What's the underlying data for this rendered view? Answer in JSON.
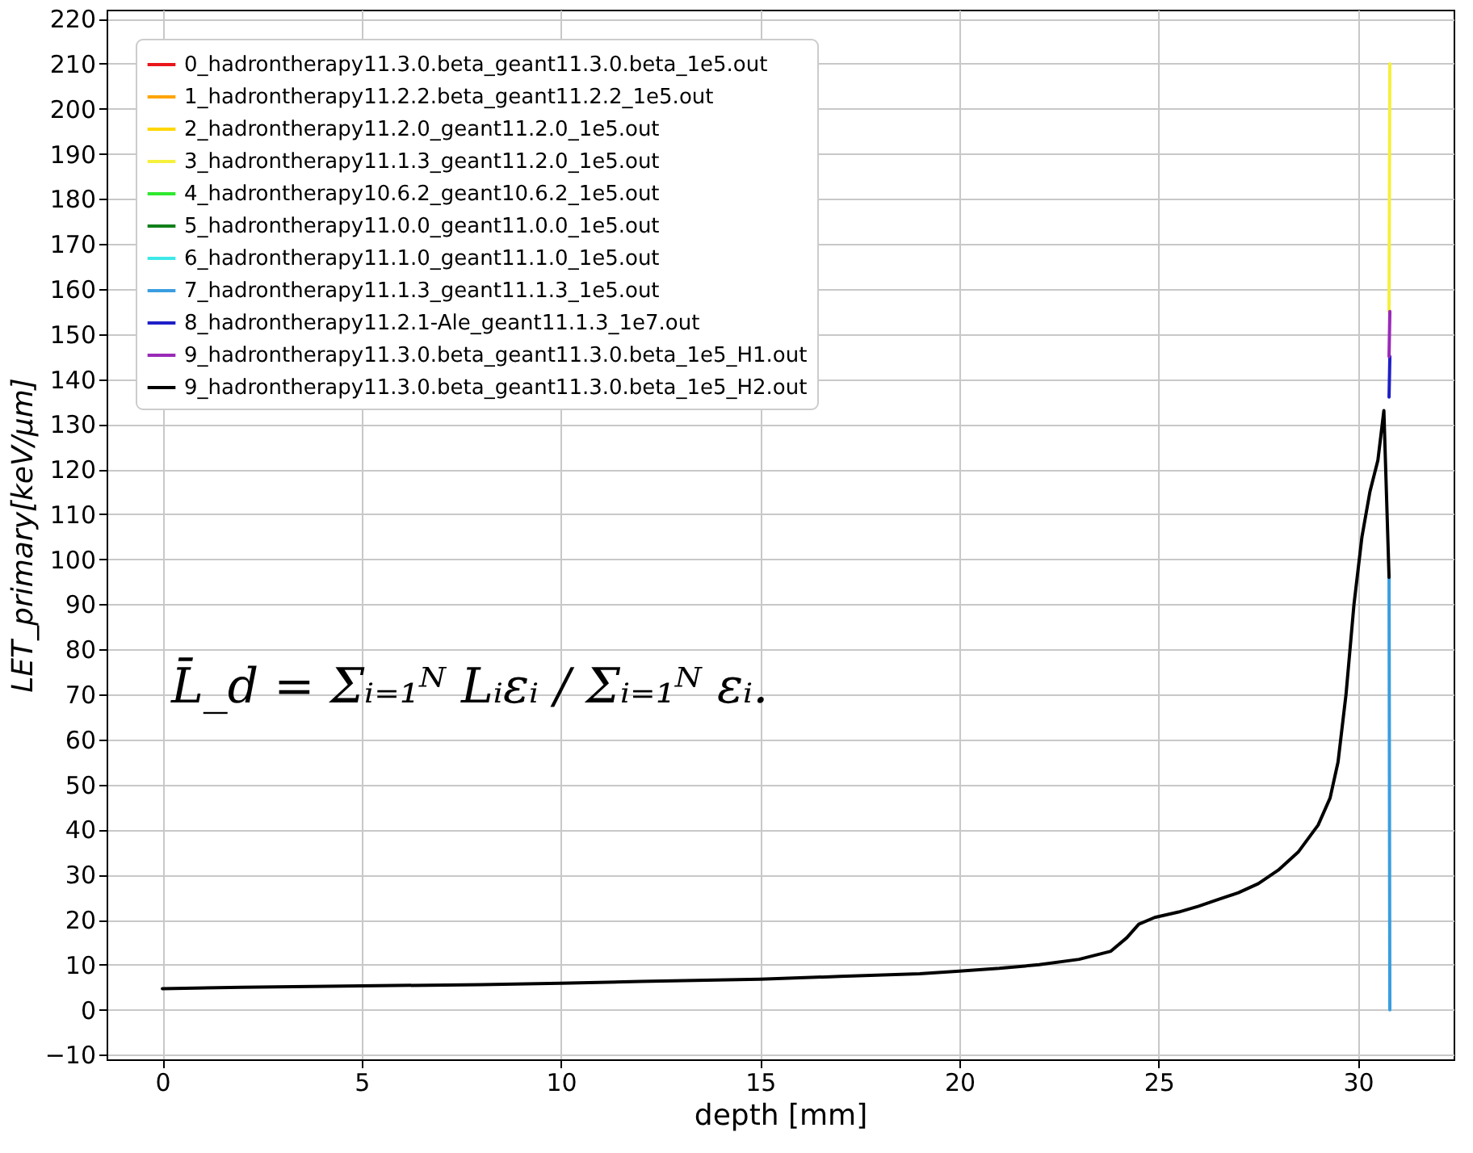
{
  "chart_data": {
    "type": "line",
    "xlabel": "depth [mm]",
    "ylabel": "LET_primary[keV/μm]",
    "x": [
      0,
      2,
      5,
      8,
      10,
      12,
      15,
      17,
      19,
      20,
      21,
      22,
      23,
      23.8,
      24.2,
      24.5,
      24.9,
      25.5,
      26,
      26.5,
      27,
      27.5,
      28,
      28.5,
      29,
      29.3,
      29.5,
      29.7,
      29.9,
      30.1,
      30.3,
      30.5,
      30.65,
      30.78,
      30.8
    ],
    "xlim": [
      -1.4,
      32.4
    ],
    "xticks": [
      0,
      5,
      10,
      15,
      20,
      25,
      30
    ],
    "ylim": [
      -11,
      222
    ],
    "yticks": [
      -10,
      0,
      10,
      20,
      30,
      40,
      50,
      60,
      70,
      80,
      90,
      100,
      110,
      120,
      130,
      140,
      150,
      160,
      170,
      180,
      190,
      200,
      210,
      220
    ],
    "grid": true,
    "legend": "top left",
    "line_style": "solid",
    "marker": "none",
    "series": [
      {
        "name": "0_hadrontherapy11.3.0.beta_geant11.3.0.beta_1e5.out",
        "color": "#e8161b",
        "values": [
          null,
          null,
          null,
          null,
          null,
          null,
          null,
          null,
          null,
          null,
          null,
          null,
          null,
          null,
          null,
          null,
          null,
          null,
          null,
          null,
          null,
          null,
          null,
          null,
          null,
          null,
          null,
          null,
          null,
          null,
          null,
          null,
          null,
          null,
          null
        ]
      },
      {
        "name": "1_hadrontherapy11.2.2.beta_geant11.2.2_1e5.out",
        "color": "#ffa500",
        "values": [
          null,
          null,
          null,
          null,
          null,
          null,
          null,
          null,
          null,
          null,
          null,
          null,
          null,
          null,
          null,
          null,
          null,
          null,
          null,
          null,
          null,
          null,
          null,
          null,
          null,
          null,
          null,
          null,
          null,
          null,
          null,
          null,
          null,
          null,
          null
        ]
      },
      {
        "name": "2_hadrontherapy11.2.0_geant11.2.0_1e5.out",
        "color": "#ffd700",
        "values": [
          null,
          null,
          null,
          null,
          null,
          null,
          null,
          null,
          null,
          null,
          null,
          null,
          null,
          null,
          null,
          null,
          null,
          null,
          null,
          null,
          null,
          null,
          null,
          null,
          null,
          null,
          null,
          null,
          null,
          null,
          null,
          null,
          null,
          null,
          null
        ]
      },
      {
        "name": "3_hadrontherapy11.1.3_geant11.2.0_1e5.out",
        "color": "#f5f03c",
        "values": [
          null,
          null,
          null,
          null,
          null,
          null,
          null,
          null,
          null,
          null,
          null,
          null,
          null,
          null,
          null,
          null,
          null,
          null,
          null,
          null,
          null,
          null,
          null,
          null,
          null,
          null,
          null,
          null,
          null,
          null,
          null,
          null,
          null,
          155,
          210
        ]
      },
      {
        "name": "4_hadrontherapy10.6.2_geant10.6.2_1e5.out",
        "color": "#2ee82e",
        "values": [
          null,
          null,
          null,
          null,
          null,
          null,
          null,
          null,
          null,
          null,
          null,
          null,
          null,
          null,
          null,
          null,
          null,
          null,
          null,
          null,
          null,
          null,
          null,
          null,
          null,
          null,
          null,
          null,
          null,
          null,
          null,
          null,
          null,
          null,
          null
        ]
      },
      {
        "name": "5_hadrontherapy11.0.0_geant11.0.0_1e5.out",
        "color": "#11801a",
        "values": [
          null,
          null,
          null,
          null,
          null,
          null,
          null,
          null,
          null,
          null,
          null,
          null,
          null,
          null,
          null,
          null,
          null,
          null,
          null,
          null,
          null,
          null,
          null,
          null,
          null,
          null,
          null,
          null,
          null,
          null,
          null,
          null,
          null,
          null,
          null
        ]
      },
      {
        "name": "6_hadrontherapy11.1.0_geant11.1.0_1e5.out",
        "color": "#3ee8e8",
        "values": [
          null,
          null,
          null,
          null,
          null,
          null,
          null,
          null,
          null,
          null,
          null,
          null,
          null,
          null,
          null,
          null,
          null,
          null,
          null,
          null,
          null,
          null,
          null,
          null,
          null,
          null,
          null,
          null,
          null,
          null,
          null,
          null,
          null,
          null,
          null
        ]
      },
      {
        "name": "7_hadrontherapy11.1.3_geant11.1.3_1e5.out",
        "color": "#3a9ee0",
        "values": [
          null,
          null,
          null,
          null,
          null,
          null,
          null,
          null,
          null,
          null,
          null,
          null,
          null,
          null,
          null,
          null,
          null,
          null,
          null,
          null,
          null,
          null,
          null,
          null,
          null,
          null,
          null,
          null,
          null,
          null,
          null,
          null,
          null,
          96,
          0
        ]
      },
      {
        "name": "8_hadrontherapy11.2.1-Ale_geant11.1.3_1e7.out",
        "color": "#1f1fc8",
        "values": [
          null,
          null,
          null,
          null,
          null,
          null,
          null,
          null,
          null,
          null,
          null,
          null,
          null,
          null,
          null,
          null,
          null,
          null,
          null,
          null,
          null,
          null,
          null,
          null,
          null,
          null,
          null,
          null,
          null,
          null,
          null,
          null,
          null,
          136,
          145
        ]
      },
      {
        "name": "9_hadrontherapy11.3.0.beta_geant11.3.0.beta_1e5_H1.out",
        "color": "#9a2ab8",
        "values": [
          null,
          null,
          null,
          null,
          null,
          null,
          null,
          null,
          null,
          null,
          null,
          null,
          null,
          null,
          null,
          null,
          null,
          null,
          null,
          null,
          null,
          null,
          null,
          null,
          null,
          null,
          null,
          null,
          null,
          null,
          null,
          null,
          null,
          145,
          155
        ]
      },
      {
        "name": "9_hadrontherapy11.3.0.beta_geant11.3.0.beta_1e5_H2.out",
        "color": "#000000",
        "values": [
          4.7,
          5.0,
          5.3,
          5.6,
          5.9,
          6.3,
          6.8,
          7.4,
          8.0,
          8.6,
          9.2,
          10.0,
          11.2,
          13,
          16,
          19,
          20.5,
          21.7,
          23,
          24.5,
          26,
          28,
          31,
          35,
          41,
          47,
          55,
          70,
          90,
          105,
          115,
          122,
          133,
          96,
          null
        ]
      }
    ],
    "annotations": [
      "L̄_d = Σᵢ₌₁ᴺ Lᵢεᵢ / Σᵢ₌₁ᴺ εᵢ."
    ]
  }
}
